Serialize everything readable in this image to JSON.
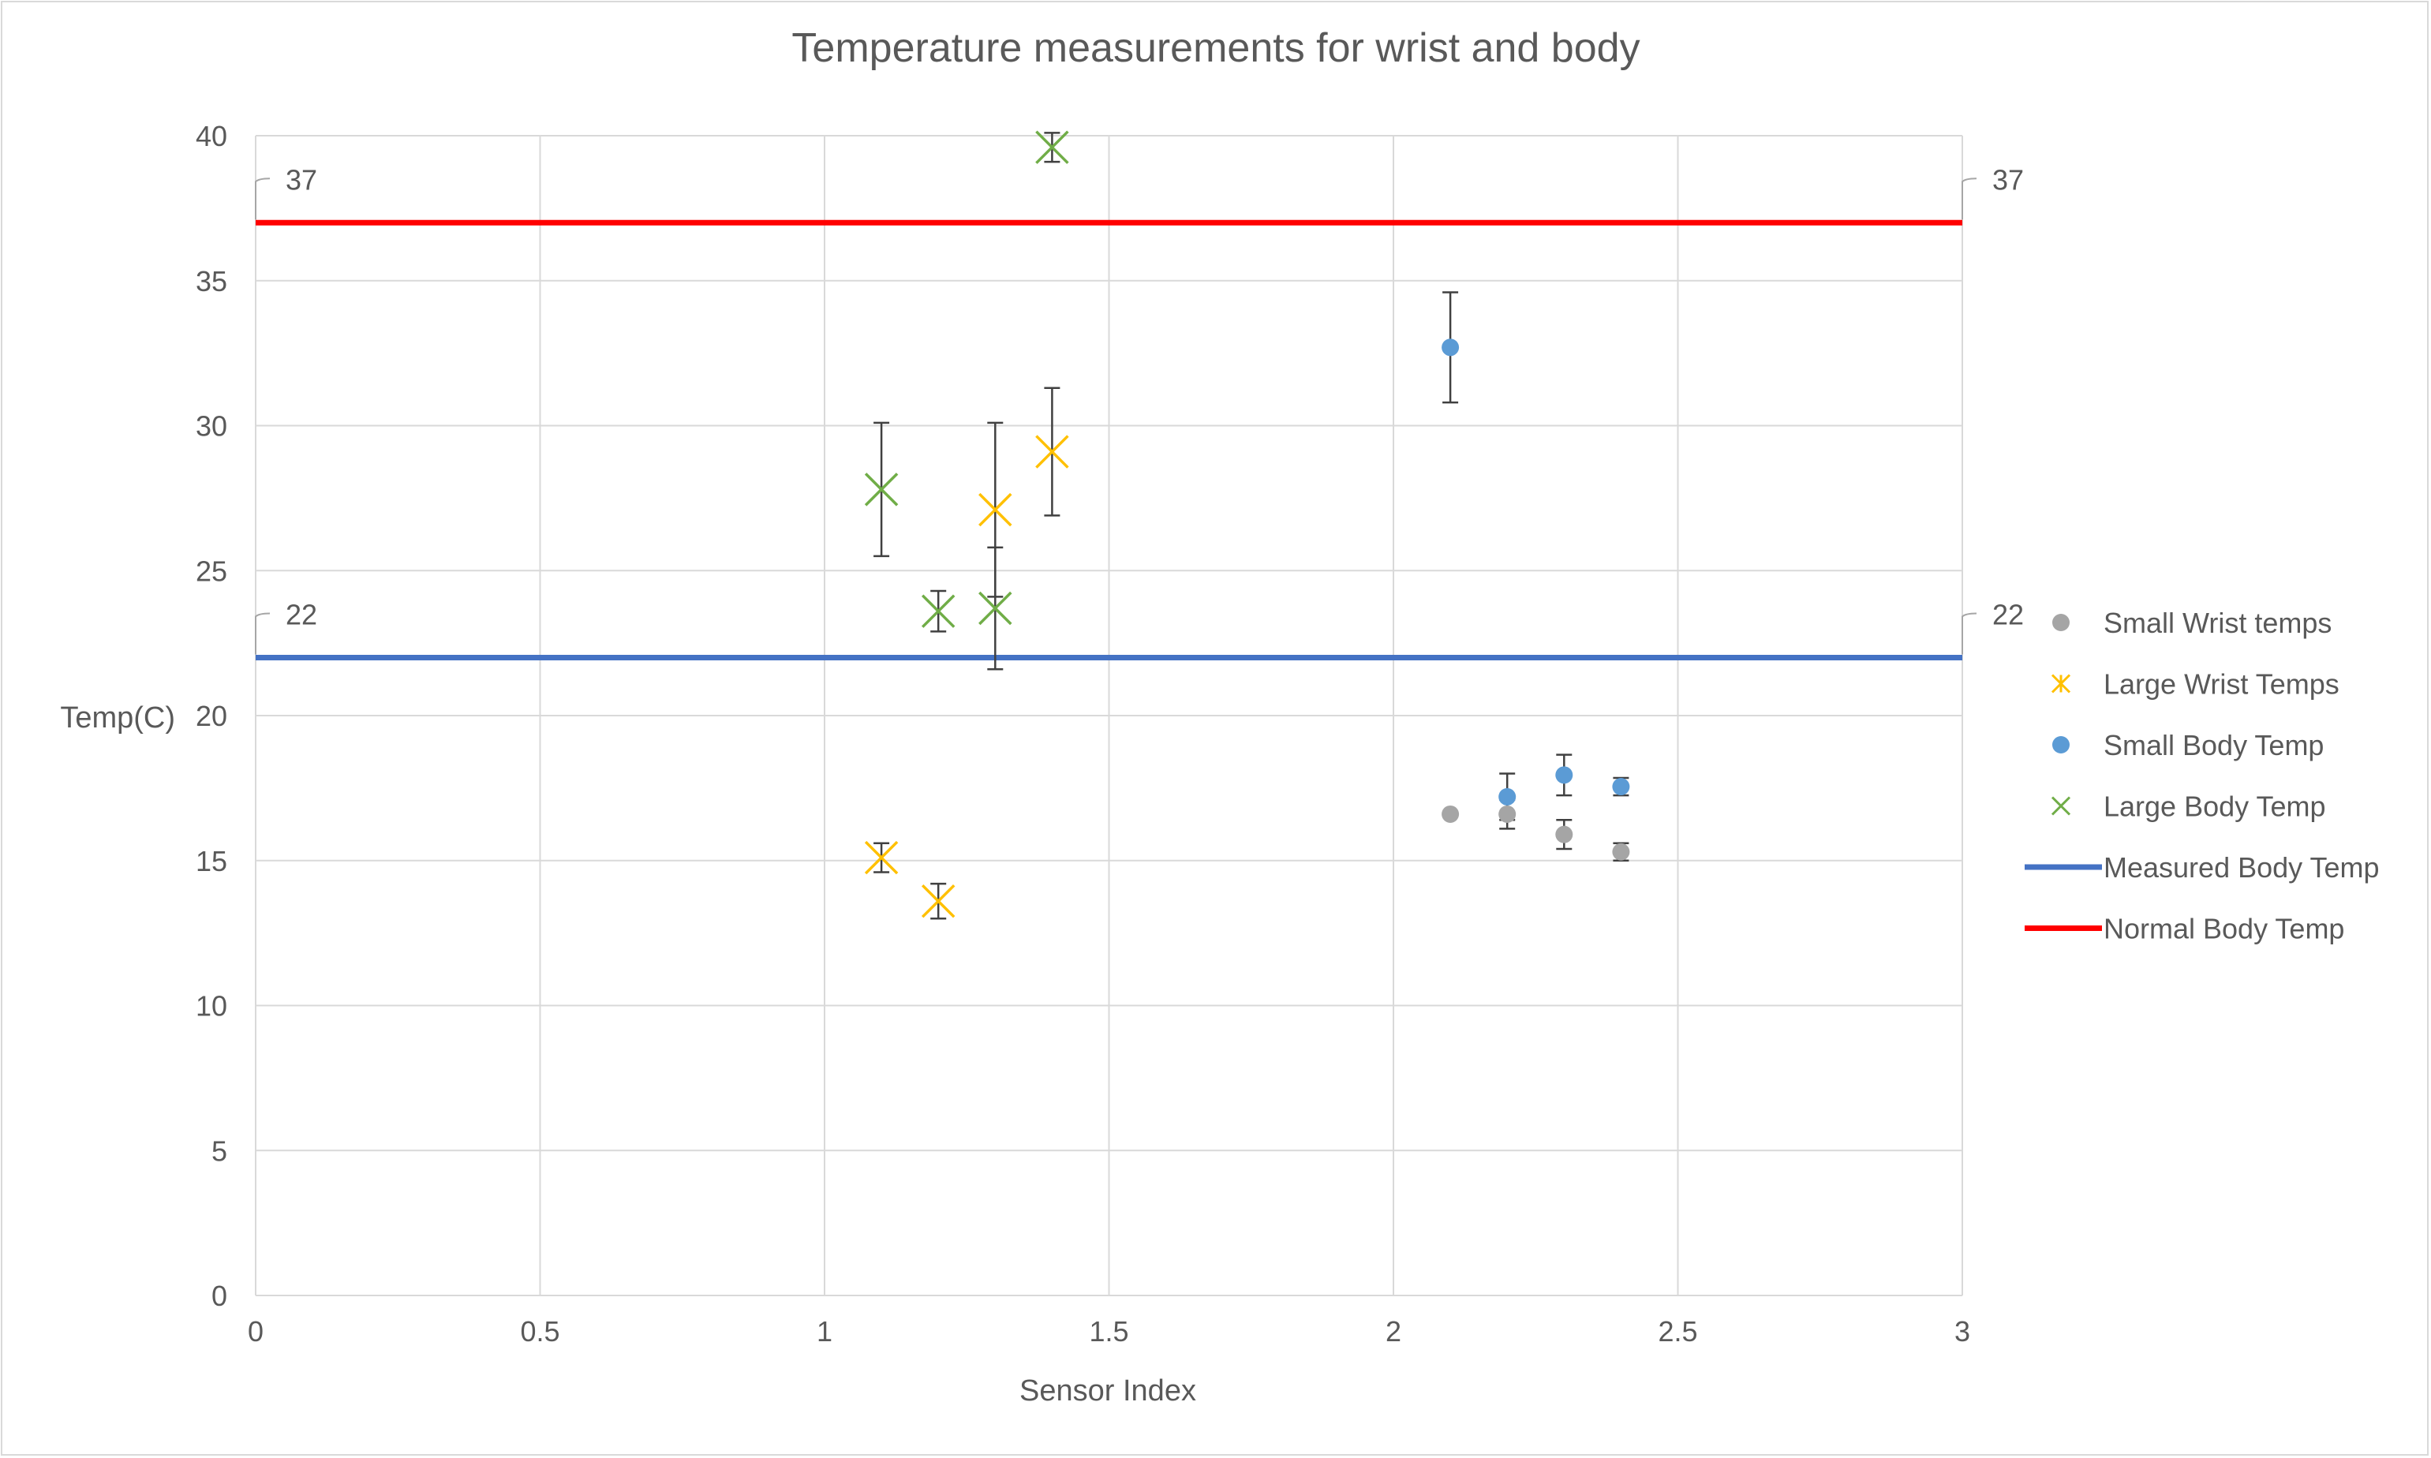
{
  "chart_data": {
    "type": "scatter",
    "title": "Temperature measurements for wrist and body",
    "xlabel": "Sensor Index",
    "ylabel": "Temp(C)",
    "xlim": [
      0,
      3
    ],
    "ylim": [
      0,
      40
    ],
    "x_ticks": [
      0,
      0.5,
      1,
      1.5,
      2,
      2.5,
      3
    ],
    "x_tick_labels": [
      "0",
      "0.5",
      "1",
      "1.5",
      "2",
      "2.5",
      "3"
    ],
    "y_ticks": [
      0,
      5,
      10,
      15,
      20,
      25,
      30,
      35,
      40
    ],
    "y_tick_labels": [
      "0",
      "5",
      "10",
      "15",
      "20",
      "25",
      "30",
      "35",
      "40"
    ],
    "grid": true,
    "legend_position": "right",
    "series": [
      {
        "name": "Small Wrist temps",
        "marker": "circle",
        "color": "#a5a5a5",
        "points": [
          {
            "x": 2.1,
            "y": 16.6,
            "err": 0
          },
          {
            "x": 2.2,
            "y": 16.6,
            "err": 0.5
          },
          {
            "x": 2.3,
            "y": 15.9,
            "err": 0.5
          },
          {
            "x": 2.4,
            "y": 15.3,
            "err": 0.3
          }
        ]
      },
      {
        "name": "Large Wrist Temps",
        "marker": "x",
        "color": "#ffc000",
        "points": [
          {
            "x": 1.1,
            "y": 15.1,
            "err": 0.5
          },
          {
            "x": 1.2,
            "y": 13.6,
            "err": 0.6
          },
          {
            "x": 1.3,
            "y": 27.1,
            "err": 3.0
          },
          {
            "x": 1.4,
            "y": 29.1,
            "err": 2.2
          }
        ]
      },
      {
        "name": "Small Body Temp",
        "marker": "circle",
        "color": "#5b9bd5",
        "points": [
          {
            "x": 2.1,
            "y": 32.7,
            "err": 1.9
          },
          {
            "x": 2.2,
            "y": 17.2,
            "err": 0.8
          },
          {
            "x": 2.3,
            "y": 17.95,
            "err": 0.7
          },
          {
            "x": 2.4,
            "y": 17.55,
            "err": 0.3
          }
        ]
      },
      {
        "name": "Large Body Temp",
        "marker": "x",
        "color": "#70ad47",
        "points": [
          {
            "x": 1.1,
            "y": 27.8,
            "err": 2.3
          },
          {
            "x": 1.2,
            "y": 23.6,
            "err": 0.7
          },
          {
            "x": 1.3,
            "y": 23.7,
            "err": 2.1
          },
          {
            "x": 1.4,
            "y": 39.6,
            "err": 0.5
          }
        ]
      },
      {
        "name": "Measured Body Temp",
        "marker": "line",
        "color": "#4472c4",
        "x": [
          0,
          3
        ],
        "values": [
          22,
          22
        ],
        "data_labels": [
          "22",
          "22"
        ]
      },
      {
        "name": "Normal Body Temp",
        "marker": "line",
        "color": "#ff0000",
        "x": [
          0,
          3
        ],
        "values": [
          37,
          37
        ],
        "data_labels": [
          "37",
          "37"
        ]
      }
    ]
  }
}
